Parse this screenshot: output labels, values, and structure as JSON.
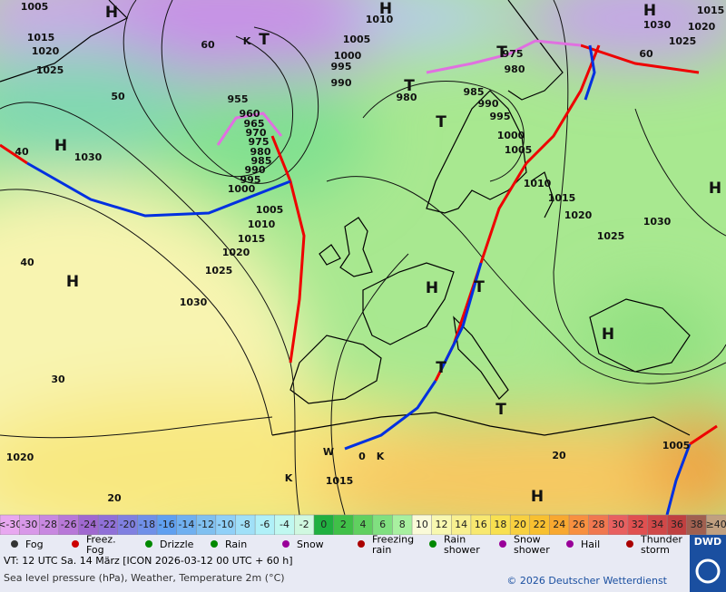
{
  "map": {
    "labels": [
      "1005",
      "1015",
      "1020",
      "1025",
      "1030",
      "H",
      "H",
      "H",
      "T",
      "K",
      "955",
      "960",
      "965",
      "970",
      "975",
      "980",
      "985",
      "990",
      "995",
      "1000",
      "1005",
      "1010",
      "1015",
      "1020",
      "1025",
      "1030",
      "H",
      "1010",
      "1005",
      "1000",
      "995",
      "990",
      "T",
      "980",
      "985",
      "990",
      "995",
      "T",
      "T",
      "975",
      "980",
      "1000",
      "1005",
      "1010",
      "1015",
      "1020",
      "1025",
      "1030",
      "H",
      "1030",
      "1025",
      "1015",
      "1020",
      "H",
      "H",
      "T",
      "H",
      "T",
      "H",
      "T",
      "1005",
      "1015",
      "1020",
      "K",
      "K",
      "W",
      "0",
      "20",
      "20",
      "30",
      "40",
      "40",
      "50",
      "60",
      "60"
    ]
  },
  "scale": {
    "values": [
      "<-30",
      -30,
      -28,
      -26,
      -24,
      -22,
      -20,
      -18,
      -16,
      -14,
      -12,
      -10,
      -8,
      -6,
      -4,
      -2,
      0,
      2,
      4,
      6,
      8,
      10,
      12,
      14,
      16,
      18,
      20,
      22,
      24,
      26,
      28,
      30,
      32,
      34,
      36,
      38,
      "≥40"
    ],
    "colors": [
      "#e8a8f0",
      "#d898e8",
      "#c888e0",
      "#b878d8",
      "#a068d0",
      "#9070d8",
      "#8080e0",
      "#7090e8",
      "#60a0f0",
      "#70b0f0",
      "#80c0f0",
      "#90d0f8",
      "#a0e0f8",
      "#b0f0f8",
      "#c0f8f0",
      "#d0f8e0",
      "#20b040",
      "#40c048",
      "#60d060",
      "#80e080",
      "#a8f0a0",
      "#fafad8",
      "#f8f8b0",
      "#f8f090",
      "#f8e870",
      "#f8e050",
      "#f8d040",
      "#f8c030",
      "#f8a830",
      "#f89040",
      "#f07850",
      "#e86060",
      "#e05050",
      "#d04848",
      "#c04040",
      "#a06050",
      "#c0a080"
    ]
  },
  "legend": [
    "Fog",
    "Freez.\nFog",
    "Drizzle",
    "Rain",
    "Snow",
    "Freezing\nrain",
    "Rain\nshower",
    "Snow\nshower",
    "Hail",
    "Thunder\nstorm"
  ],
  "logo": "DWD",
  "footer": {
    "valid": "VT: 12 UTC Sa.  14 März [ICON 2026-03-12  00 UTC + 60 h]",
    "description": "Sea level pressure (hPa), Weather, Temperature 2m (°C)",
    "copyright": "© 2026 Deutscher Wetterdienst"
  }
}
